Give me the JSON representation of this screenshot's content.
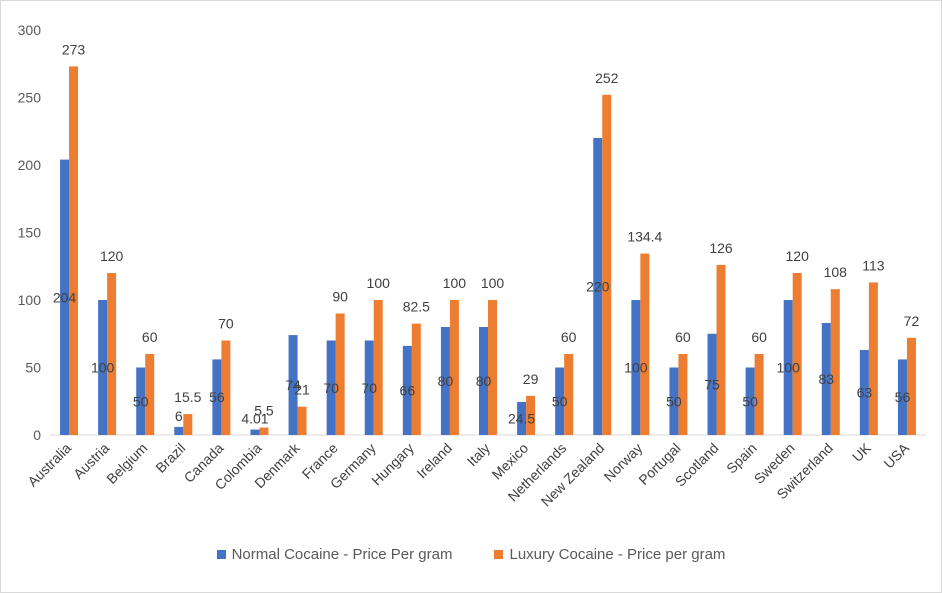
{
  "chart_data": {
    "type": "bar",
    "title": "",
    "xlabel": "",
    "ylabel": "",
    "ylim": [
      0,
      300
    ],
    "yticks": [
      0,
      50,
      100,
      150,
      200,
      250,
      300
    ],
    "grid": false,
    "legend_position": "bottom",
    "categories": [
      "Australia",
      "Austria",
      "Belgium",
      "Brazil",
      "Canada",
      "Colombia",
      "Denmark",
      "France",
      "Germany",
      "Hungary",
      "Ireland",
      "Italy",
      "Mexico",
      "Netherlands",
      "New Zealand",
      "Norway",
      "Portugal",
      "Scotland",
      "Spain",
      "Sweden",
      "Switzerland",
      "UK",
      "USA"
    ],
    "series": [
      {
        "name": "Normal Cocaine - Price Per gram",
        "color": "#4472c4",
        "values": [
          204,
          100,
          50,
          6,
          56,
          4.01,
          74,
          70,
          70,
          66,
          80,
          80,
          24.5,
          50,
          220,
          100,
          50,
          75,
          50,
          100,
          83,
          63,
          56
        ],
        "labels": [
          "204",
          "100",
          "50",
          "6",
          "56",
          "4.01",
          "74",
          "70",
          "70",
          "66",
          "80",
          "80",
          "24.5",
          "50",
          "220",
          "100",
          "50",
          "75",
          "50",
          "100",
          "83",
          "63",
          "56"
        ]
      },
      {
        "name": "Luxury Cocaine - Price per gram",
        "color": "#ed7d31",
        "values": [
          273,
          120,
          60,
          15.5,
          70,
          5.5,
          21,
          90,
          100,
          82.5,
          100,
          100,
          29,
          60,
          252,
          134.4,
          60,
          126,
          60,
          120,
          108,
          113,
          72
        ],
        "labels": [
          "273",
          "120",
          "60",
          "15.5",
          "70",
          "5.5",
          "21",
          "90",
          "100",
          "82.5",
          "100",
          "100",
          "29",
          "60",
          "252",
          "134.4",
          "60",
          "126",
          "60",
          "120",
          "108",
          "113",
          "72"
        ]
      }
    ]
  }
}
